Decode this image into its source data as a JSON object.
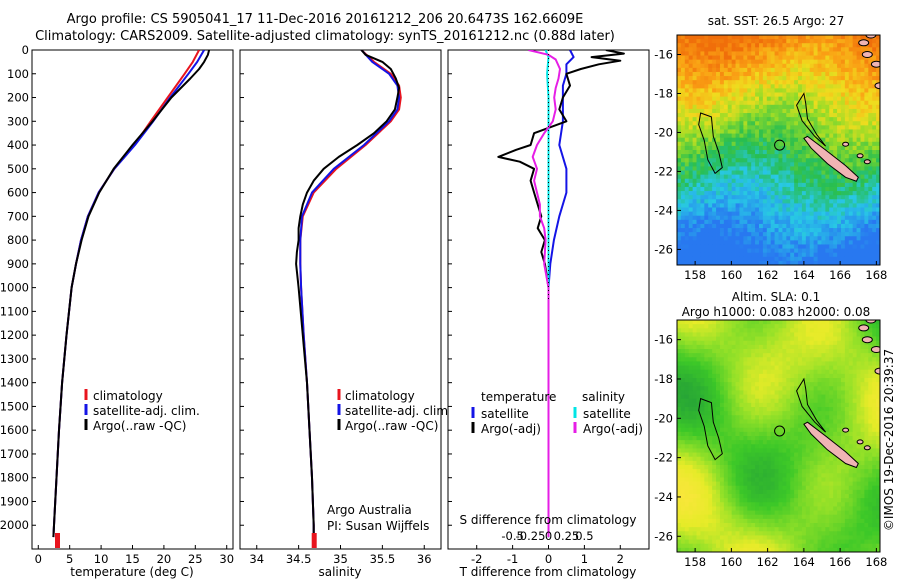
{
  "header": {
    "line1": "Argo profile: CS 5905041_17 11-Dec-2016 20161212_206 20.6473S 162.6609E",
    "line2": "Climatology: CARS2009. Satellite-adjusted climatology: synTS_20161212.nc (0.88d later)"
  },
  "colors": {
    "climatology": "#e8141e",
    "satellite": "#1414e6",
    "argo": "#000000",
    "t_diff": "#000000",
    "s_sat": "#00e5e5",
    "s_argo": "#e61ee6",
    "land": "#f0b4b4"
  },
  "chart_data": [
    {
      "type": "line",
      "id": "temperature-profile",
      "xlabel": "temperature (deg C)",
      "ylabel": "",
      "xlim": [
        -1,
        31
      ],
      "ylim": [
        2100,
        0
      ],
      "xticks": [
        0,
        5,
        10,
        15,
        20,
        25,
        30
      ],
      "yticks": [
        0,
        100,
        200,
        300,
        400,
        500,
        600,
        700,
        800,
        900,
        1000,
        1100,
        1200,
        1300,
        1400,
        1500,
        1600,
        1700,
        1800,
        1900,
        2000
      ],
      "legend": [
        "climatology",
        "satellite-adj. clim.",
        "Argo(..raw -QC)"
      ],
      "series": [
        {
          "name": "climatology",
          "depth": [
            0,
            50,
            100,
            200,
            300,
            400,
            500,
            600,
            700,
            800,
            900,
            1000,
            1200,
            1400,
            1600,
            1800,
            2000,
            2050
          ],
          "values": [
            25.6,
            24.6,
            23.3,
            20.6,
            17.9,
            15.3,
            12.1,
            9.6,
            7.9,
            6.8,
            6.0,
            5.3,
            4.5,
            3.8,
            3.3,
            2.9,
            2.5,
            2.4
          ]
        },
        {
          "name": "satellite-adj. clim.",
          "depth": [
            0,
            50,
            100,
            200,
            300,
            400,
            500,
            600,
            700,
            800,
            900,
            1000,
            1200,
            1400,
            1600,
            1800,
            2000,
            2050
          ],
          "values": [
            26.4,
            25.3,
            23.9,
            21.0,
            18.3,
            15.4,
            12.1,
            9.6,
            7.9,
            6.8,
            6.0,
            5.3,
            4.5,
            3.8,
            3.3,
            2.9,
            2.5,
            2.4
          ]
        },
        {
          "name": "Argo(..raw -QC)",
          "depth": [
            0,
            20,
            50,
            80,
            120,
            200,
            300,
            400,
            500,
            600,
            700,
            800,
            900,
            1000,
            1200,
            1400,
            1600,
            1800,
            2000,
            2050
          ],
          "values": [
            27.2,
            27.0,
            26.4,
            25.6,
            24.2,
            21.2,
            18.2,
            15.0,
            12.0,
            9.7,
            8.0,
            6.9,
            6.0,
            5.3,
            4.5,
            3.8,
            3.3,
            2.9,
            2.5,
            2.4
          ]
        }
      ]
    },
    {
      "type": "line",
      "id": "salinity-profile",
      "xlabel": "salinity",
      "xlim": [
        33.8,
        36.2
      ],
      "ylim": [
        2100,
        0
      ],
      "xticks": [
        34,
        34.5,
        35,
        35.5,
        36
      ],
      "legend": [
        "climatology",
        "satellite-adj. clim.",
        "Argo(..raw -QC)"
      ],
      "annotation": [
        "Argo Australia",
        "PI: Susan Wijffels"
      ],
      "series": [
        {
          "name": "climatology",
          "depth": [
            0,
            50,
            100,
            150,
            200,
            250,
            300,
            400,
            500,
            600,
            700,
            800,
            900,
            1000,
            1200,
            1400,
            1600,
            1800,
            2000,
            2050
          ],
          "values": [
            35.25,
            35.4,
            35.6,
            35.7,
            35.72,
            35.7,
            35.6,
            35.3,
            34.95,
            34.68,
            34.55,
            34.52,
            34.52,
            34.53,
            34.56,
            34.6,
            34.63,
            34.66,
            34.68,
            34.68
          ]
        },
        {
          "name": "satellite-adj. clim.",
          "depth": [
            0,
            50,
            100,
            150,
            200,
            250,
            300,
            400,
            500,
            600,
            700,
            800,
            900,
            1000,
            1200,
            1400,
            1600,
            1800,
            2000,
            2050
          ],
          "values": [
            35.25,
            35.38,
            35.58,
            35.68,
            35.7,
            35.68,
            35.58,
            35.28,
            34.92,
            34.66,
            34.54,
            34.52,
            34.52,
            34.53,
            34.56,
            34.6,
            34.63,
            34.66,
            34.68,
            34.68
          ]
        },
        {
          "name": "Argo(..raw -QC)",
          "depth": [
            0,
            20,
            50,
            80,
            120,
            160,
            200,
            250,
            300,
            350,
            400,
            450,
            500,
            550,
            600,
            650,
            700,
            750,
            800,
            850,
            900,
            1000,
            1200,
            1400,
            1600,
            1800,
            2000,
            2050
          ],
          "values": [
            35.25,
            35.3,
            35.5,
            35.6,
            35.66,
            35.7,
            35.68,
            35.65,
            35.55,
            35.4,
            35.2,
            34.98,
            34.8,
            34.68,
            34.6,
            34.55,
            34.52,
            34.5,
            34.5,
            34.48,
            34.47,
            34.5,
            34.55,
            34.6,
            34.63,
            34.66,
            34.68,
            34.68
          ]
        }
      ]
    },
    {
      "type": "line",
      "id": "difference-profile",
      "xlabel": "T difference from climatology",
      "xlabel_top": "S difference from climatology",
      "xlim": [
        -2.8,
        2.8
      ],
      "ylim": [
        2100,
        0
      ],
      "xticks": [
        -2,
        -1,
        0,
        1,
        2
      ],
      "top_ticks": [
        "-0.5",
        "-0.25",
        "0",
        "0.25",
        "0.5"
      ],
      "legend_titles": [
        "temperature",
        "salinity"
      ],
      "legend": [
        "satellite",
        "Argo(-adj)",
        "satellite",
        "Argo(-adj)"
      ],
      "series": [
        {
          "name": "temperature satellite",
          "depth": [
            0,
            30,
            60,
            100,
            150,
            200,
            300,
            400,
            500,
            600,
            700,
            800,
            900,
            1000,
            2050
          ],
          "values": [
            0.6,
            0.7,
            0.5,
            0.5,
            0.4,
            0.4,
            0.4,
            0.3,
            0.5,
            0.5,
            0.3,
            0.15,
            0.05,
            0.0,
            0.0
          ]
        },
        {
          "name": "temperature Argo(-adj)",
          "depth": [
            0,
            15,
            30,
            45,
            60,
            80,
            100,
            150,
            200,
            250,
            300,
            350,
            400,
            420,
            450,
            470,
            500,
            550,
            600,
            650,
            700,
            750,
            800,
            850,
            900,
            1000,
            2050
          ],
          "values": [
            1.6,
            2.1,
            1.2,
            2.0,
            1.4,
            0.9,
            0.5,
            0.6,
            0.4,
            0.3,
            0.5,
            -0.4,
            -0.5,
            -0.9,
            -1.4,
            -0.8,
            -0.4,
            -0.5,
            -0.4,
            -0.3,
            -0.2,
            -0.3,
            -0.1,
            -0.2,
            -0.1,
            0.0,
            0.0
          ]
        },
        {
          "name": "salinity satellite",
          "depth": [
            0,
            30,
            100,
            200,
            300,
            500,
            800,
            1000,
            2050
          ],
          "values": [
            -0.02,
            0.0,
            -0.01,
            0.0,
            0.0,
            0.0,
            0.0,
            0.0,
            0.0
          ]
        },
        {
          "name": "salinity Argo(-adj)",
          "depth": [
            0,
            20,
            40,
            80,
            120,
            160,
            200,
            250,
            300,
            350,
            400,
            450,
            500,
            550,
            600,
            650,
            700,
            750,
            800,
            900,
            1000,
            1200,
            1400,
            1600,
            1800,
            2000,
            2050
          ],
          "values": [
            -0.14,
            0.0,
            0.05,
            0.08,
            0.07,
            0.05,
            0.04,
            0.05,
            0.03,
            -0.03,
            -0.08,
            -0.11,
            -0.08,
            -0.1,
            -0.08,
            -0.06,
            -0.06,
            -0.03,
            -0.02,
            -0.03,
            0.0,
            0.0,
            0.0,
            0.0,
            0.0,
            0.0,
            0.0
          ]
        }
      ]
    },
    {
      "type": "heatmap",
      "id": "sst-map",
      "title": "sat. SST: 26.5 Argo: 27",
      "xticks": [
        158,
        160,
        162,
        164,
        166,
        168
      ],
      "yticks": [
        -16,
        -18,
        -20,
        -22,
        -24,
        -26
      ],
      "xlim": [
        157,
        168.2
      ],
      "ylim": [
        -26.8,
        -15
      ],
      "float_position": {
        "lon": 162.6609,
        "lat": -20.6473
      }
    },
    {
      "type": "heatmap",
      "id": "sla-map",
      "title": "Altim. SLA: 0.1",
      "subtitle": "Argo h1000: 0.083 h2000: 0.08",
      "xticks": [
        158,
        160,
        162,
        164,
        166,
        168
      ],
      "yticks": [
        -16,
        -18,
        -20,
        -22,
        -24,
        -26
      ],
      "xlim": [
        157,
        168.2
      ],
      "ylim": [
        -26.8,
        -15
      ],
      "float_position": {
        "lon": 162.6609,
        "lat": -20.6473
      },
      "side_label": "©IMOS 19-Dec-2016 20:39:37"
    }
  ]
}
